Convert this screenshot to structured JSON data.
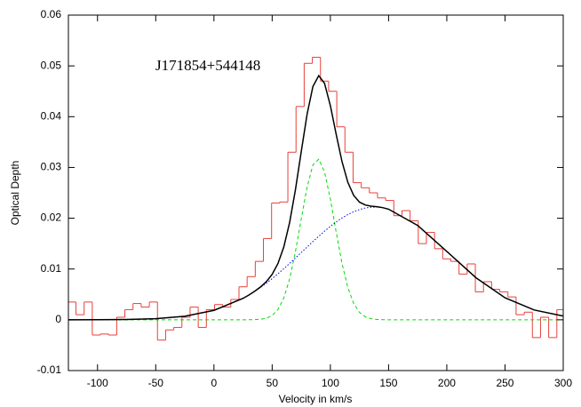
{
  "chart_data": {
    "type": "line",
    "annotation": "J171854+544148",
    "xlabel": "Velocity in km/s",
    "ylabel": "Optical Depth",
    "xlim": [
      -125,
      300
    ],
    "xticks": [
      -100,
      -50,
      0,
      50,
      100,
      150,
      200,
      250,
      300
    ],
    "ylim": [
      -0.01,
      0.06
    ],
    "yticks": [
      -0.01,
      0,
      0.01,
      0.02,
      0.03,
      0.04,
      0.05,
      0.06
    ],
    "series": [
      {
        "color": "#e8403a",
        "style": "steps",
        "bin_width": 7,
        "x": [
          -122,
          -115,
          -108,
          -101,
          -94,
          -87,
          -80,
          -73,
          -66,
          -59,
          -52,
          -45,
          -38,
          -31,
          -24,
          -17,
          -10,
          -3,
          4,
          11,
          18,
          25,
          32,
          39,
          46,
          53,
          60,
          67,
          74,
          81,
          88,
          95,
          102,
          109,
          116,
          123,
          130,
          137,
          144,
          151,
          158,
          165,
          172,
          179,
          186,
          193,
          200,
          207,
          214,
          221,
          228,
          235,
          242,
          249,
          256,
          263,
          270,
          277,
          284,
          291,
          298
        ],
        "values": [
          0.0035,
          0.001,
          0.0035,
          -0.003,
          -0.0028,
          -0.003,
          0.0005,
          0.002,
          0.0032,
          0.0025,
          0.0035,
          -0.004,
          -0.002,
          -0.0015,
          0.0005,
          0.0025,
          -0.0015,
          0.002,
          0.003,
          0.0025,
          0.004,
          0.0065,
          0.0085,
          0.0115,
          0.016,
          0.023,
          0.0232,
          0.033,
          0.042,
          0.0505,
          0.0517,
          0.047,
          0.045,
          0.038,
          0.033,
          0.027,
          0.026,
          0.025,
          0.024,
          0.0235,
          0.0205,
          0.0215,
          0.0195,
          0.015,
          0.0172,
          0.014,
          0.012,
          0.0115,
          0.009,
          0.011,
          0.0055,
          0.0075,
          0.006,
          0.0055,
          0.0045,
          0.001,
          0.0015,
          -0.0035,
          0.0005,
          -0.0035,
          0.002
        ]
      },
      {
        "color": "#00dd00",
        "style": "dashed",
        "x": [
          -125,
          -100,
          -75,
          -50,
          -25,
          0,
          25,
          30,
          35,
          40,
          45,
          50,
          55,
          60,
          65,
          70,
          75,
          80,
          85,
          90,
          95,
          100,
          105,
          110,
          115,
          120,
          125,
          130,
          135,
          140,
          145,
          150,
          175,
          200,
          225,
          250,
          275,
          300
        ],
        "values": [
          0,
          0,
          0,
          0,
          0,
          0,
          0,
          1e-05,
          3e-05,
          0.0001,
          0.0003,
          0.00085,
          0.00203,
          0.00429,
          0.00805,
          0.01344,
          0.01989,
          0.02614,
          0.03052,
          0.03163,
          0.0291,
          0.02377,
          0.01724,
          0.0111,
          0.00635,
          0.00322,
          0.00146,
          0.00058,
          0.00021,
          7e-05,
          2e-05,
          0,
          0,
          0,
          0,
          0,
          0,
          0
        ]
      },
      {
        "color": "#0000ee",
        "style": "dotted",
        "x": [
          -125,
          -100,
          -75,
          -50,
          -25,
          0,
          25,
          30,
          35,
          40,
          45,
          50,
          55,
          60,
          65,
          70,
          75,
          80,
          85,
          90,
          95,
          100,
          105,
          110,
          115,
          120,
          125,
          130,
          135,
          140,
          145,
          150,
          175,
          200,
          225,
          250,
          275,
          300
        ],
        "values": [
          3e-06,
          1.4e-05,
          6e-05,
          0.00022,
          0.0007,
          0.00186,
          0.00422,
          0.00487,
          0.00559,
          0.00637,
          0.00721,
          0.0081,
          0.00906,
          0.01006,
          0.0111,
          0.01217,
          0.01325,
          0.01433,
          0.01541,
          0.01645,
          0.01745,
          0.0184,
          0.01927,
          0.02005,
          0.02072,
          0.02128,
          0.02171,
          0.02202,
          0.02217,
          0.0222,
          0.02206,
          0.02178,
          0.01858,
          0.01347,
          0.00829,
          0.00434,
          0.00193,
          0.00073
        ]
      },
      {
        "color": "#000000",
        "style": "solid",
        "x": [
          -125,
          -100,
          -75,
          -50,
          -25,
          0,
          25,
          30,
          35,
          40,
          45,
          50,
          55,
          60,
          65,
          70,
          75,
          80,
          85,
          90,
          95,
          100,
          105,
          110,
          115,
          120,
          125,
          130,
          135,
          140,
          145,
          150,
          175,
          200,
          225,
          250,
          275,
          300
        ],
        "values": [
          3e-06,
          1.4e-05,
          6e-05,
          0.00022,
          0.0007,
          0.00186,
          0.00422,
          0.00488,
          0.00562,
          0.00647,
          0.00751,
          0.00895,
          0.01109,
          0.01435,
          0.01915,
          0.02561,
          0.03314,
          0.04047,
          0.04593,
          0.04808,
          0.04655,
          0.04217,
          0.03651,
          0.03115,
          0.02707,
          0.0245,
          0.02317,
          0.0226,
          0.02238,
          0.02227,
          0.02208,
          0.02178,
          0.01858,
          0.01347,
          0.00829,
          0.00434,
          0.00193,
          0.00073
        ]
      }
    ]
  }
}
